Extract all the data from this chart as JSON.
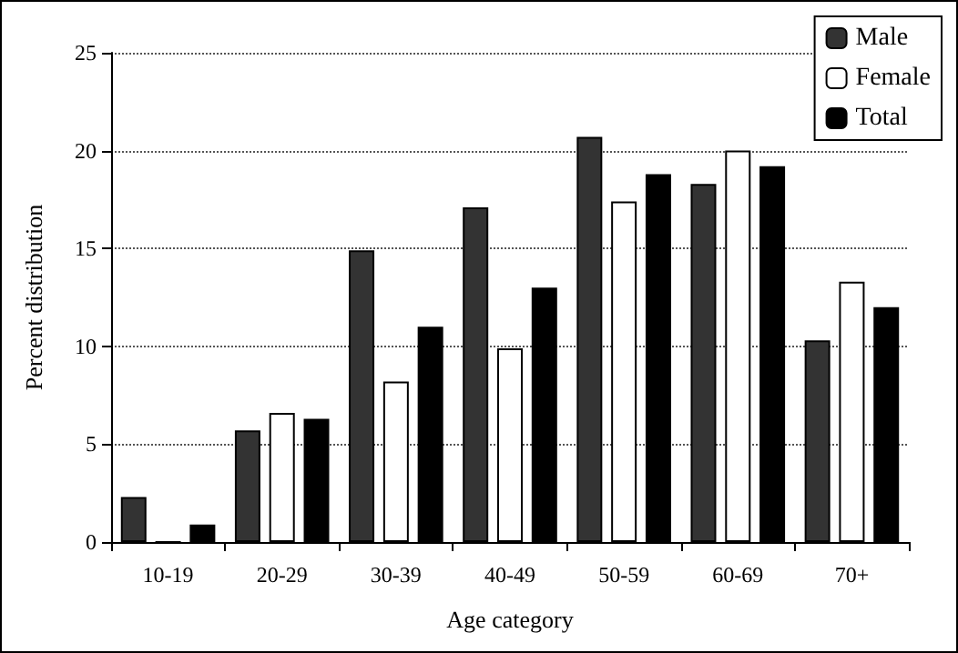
{
  "chart_data": {
    "type": "bar",
    "xlabel": "Age category",
    "ylabel": "Percent distribution",
    "categories": [
      "10-19",
      "20-29",
      "30-39",
      "40-49",
      "50-59",
      "60-69",
      "70+"
    ],
    "series": [
      {
        "name": "Male",
        "color": "#333333",
        "values": [
          2.3,
          5.7,
          14.9,
          17.1,
          20.7,
          18.3,
          10.3
        ]
      },
      {
        "name": "Female",
        "color": "#ffffff",
        "values": [
          0,
          6.6,
          8.2,
          9.9,
          17.4,
          20.0,
          13.3
        ]
      },
      {
        "name": "Total",
        "color": "#000000",
        "values": [
          0.9,
          6.3,
          11.0,
          13.0,
          18.8,
          19.2,
          12.0
        ]
      }
    ],
    "ylim": [
      0,
      25
    ],
    "yticks": [
      0,
      5,
      10,
      15,
      20,
      25
    ],
    "grid": "y",
    "legend": "top right"
  }
}
